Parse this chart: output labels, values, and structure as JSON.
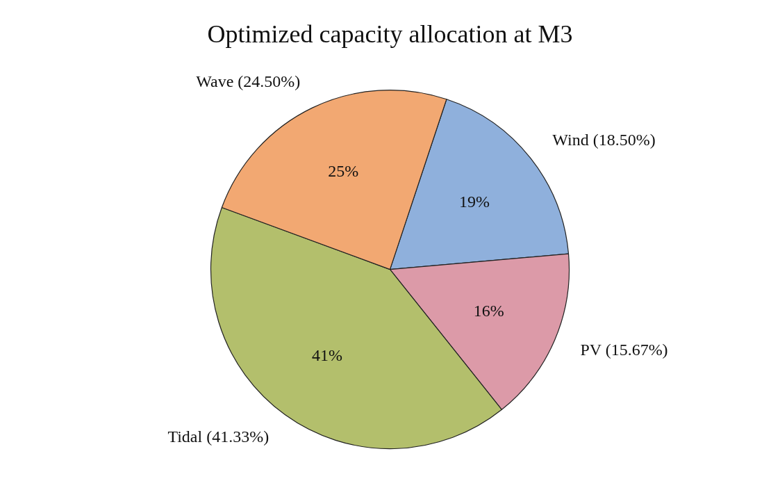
{
  "chart_data": {
    "type": "pie",
    "title": "Optimized capacity allocation at M3",
    "categories": [
      "Wind (18.50%)",
      "PV (15.67%)",
      "Tidal (41.33%)",
      "Wave (24.50%)"
    ],
    "values": [
      18.5,
      15.67,
      41.33,
      24.5
    ],
    "value_labels": [
      "19%",
      "16%",
      "41%",
      "25%"
    ],
    "colors": [
      "#8fb0dc",
      "#dc9aa8",
      "#b3bf6c",
      "#f2a872"
    ],
    "legend": false
  }
}
